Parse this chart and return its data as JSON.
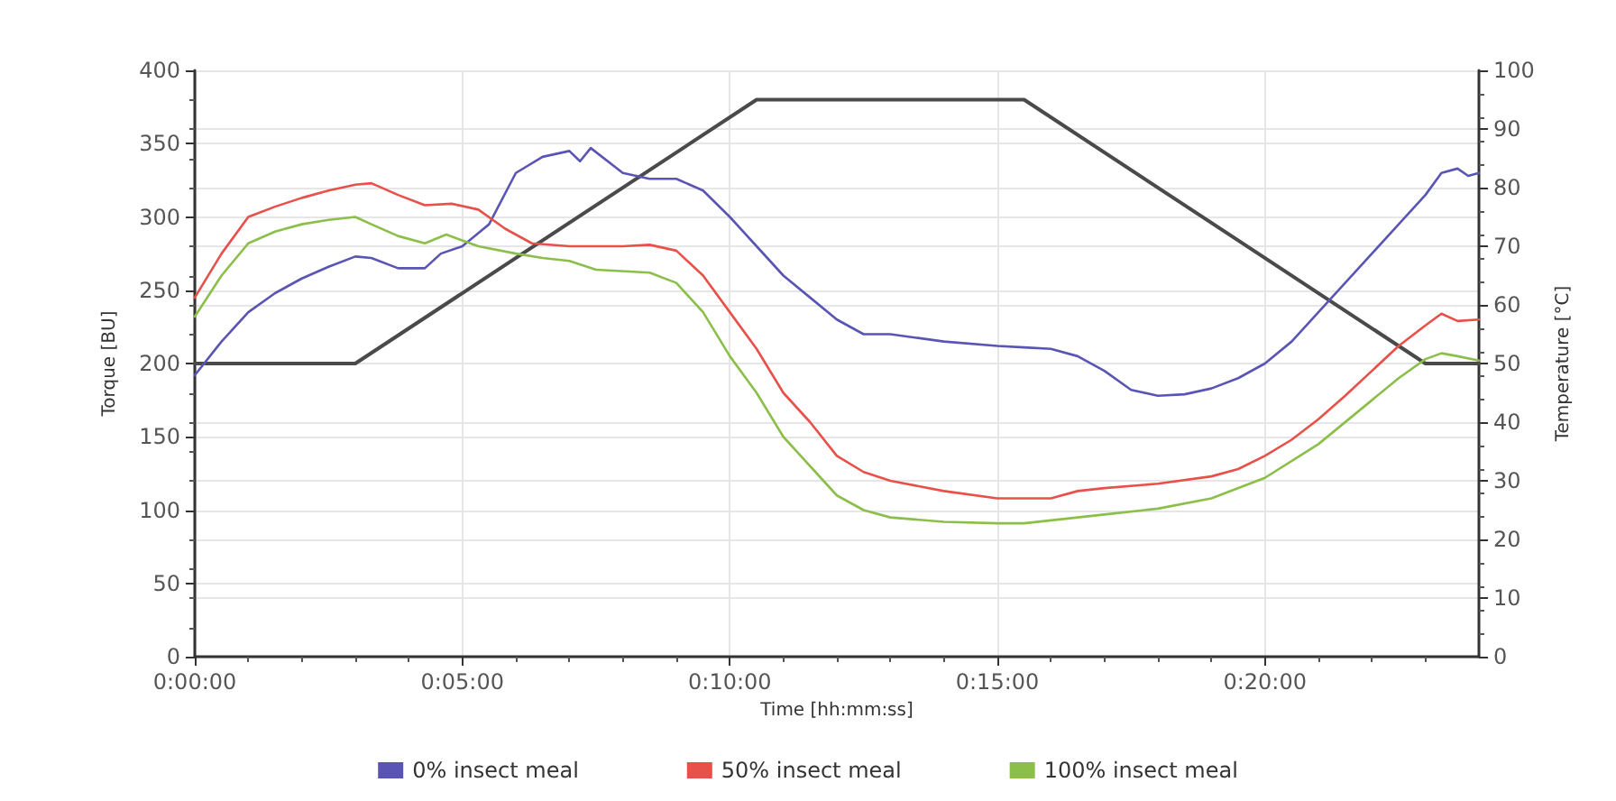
{
  "chart_data": {
    "type": "line",
    "xlabel": "Time [hh:mm:ss]",
    "ylabel": "Torque [BU]",
    "y2label": "Temperature [°C]",
    "xlim": [
      0,
      24
    ],
    "xticks": [
      {
        "value": 0,
        "label": "0:00:00"
      },
      {
        "value": 5,
        "label": "0:05:00"
      },
      {
        "value": 10,
        "label": "0:10:00"
      },
      {
        "value": 15,
        "label": "0:15:00"
      },
      {
        "value": 20,
        "label": "0:20:00"
      }
    ],
    "ylim": [
      0,
      400
    ],
    "yticks": [
      0,
      50,
      100,
      150,
      200,
      250,
      300,
      350,
      400
    ],
    "y2lim": [
      0,
      100
    ],
    "y2ticks": [
      0,
      10,
      20,
      30,
      40,
      50,
      60,
      70,
      80,
      90,
      100
    ],
    "grid": true,
    "legend": "bottom",
    "marker": "none",
    "line_style": "solid",
    "series": [
      {
        "name": "0% insect meal",
        "color": "#5a55b5",
        "x": [
          0,
          0.5,
          1,
          1.5,
          2,
          2.5,
          3,
          3.3,
          3.8,
          4.3,
          4.6,
          5,
          5.5,
          6,
          6.5,
          7,
          7.2,
          7.4,
          8,
          8.5,
          9,
          9.5,
          10,
          10.5,
          11,
          11.5,
          12,
          12.5,
          13,
          14,
          15,
          15.5,
          16,
          16.5,
          17,
          17.5,
          18,
          18.5,
          19,
          19.5,
          20,
          20.5,
          21,
          21.5,
          22,
          22.5,
          23,
          23.3,
          23.6,
          23.8,
          24
        ],
        "values": [
          192,
          215,
          235,
          248,
          258,
          266,
          273,
          272,
          265,
          265,
          275,
          280,
          295,
          330,
          341,
          345,
          338,
          347,
          330,
          326,
          326,
          318,
          300,
          280,
          260,
          245,
          230,
          220,
          220,
          215,
          212,
          211,
          210,
          205,
          195,
          182,
          178,
          179,
          183,
          190,
          200,
          215,
          235,
          255,
          275,
          295,
          315,
          330,
          333,
          328,
          330
        ]
      },
      {
        "name": "50% insect meal",
        "color": "#e8504a",
        "x": [
          0,
          0.5,
          1,
          1.5,
          2,
          2.5,
          3,
          3.3,
          3.8,
          4.3,
          4.8,
          5.3,
          5.8,
          6.3,
          7,
          8,
          8.5,
          9,
          9.5,
          10,
          10.5,
          11,
          11.5,
          12,
          12.5,
          13,
          14,
          15,
          15.5,
          16,
          16.5,
          17,
          18,
          19,
          19.5,
          20,
          20.5,
          21,
          21.5,
          22,
          22.5,
          23,
          23.3,
          23.6,
          24
        ],
        "values": [
          245,
          275,
          300,
          307,
          313,
          318,
          322,
          323,
          315,
          308,
          309,
          305,
          292,
          282,
          280,
          280,
          281,
          277,
          260,
          235,
          210,
          180,
          160,
          137,
          126,
          120,
          113,
          108,
          108,
          108,
          113,
          115,
          118,
          123,
          128,
          137,
          148,
          162,
          178,
          195,
          212,
          226,
          234,
          229,
          230
        ]
      },
      {
        "name": "100% insect meal",
        "color": "#8cbf4a",
        "x": [
          0,
          0.5,
          1,
          1.5,
          2,
          2.5,
          3,
          3.3,
          3.8,
          4.3,
          4.7,
          5.3,
          6,
          6.5,
          7,
          7.5,
          8.5,
          9,
          9.5,
          10,
          10.5,
          11,
          11.5,
          12,
          12.5,
          13,
          14,
          15,
          15.5,
          16,
          17,
          18,
          19,
          20,
          21,
          22,
          22.5,
          23,
          23.3,
          23.6,
          24
        ],
        "values": [
          232,
          260,
          282,
          290,
          295,
          298,
          300,
          295,
          287,
          282,
          288,
          280,
          275,
          272,
          270,
          264,
          262,
          255,
          235,
          205,
          180,
          150,
          130,
          110,
          100,
          95,
          92,
          91,
          91,
          93,
          97,
          101,
          108,
          122,
          145,
          175,
          190,
          203,
          207,
          205,
          202
        ]
      },
      {
        "color": "#4a4a4a",
        "axis": "y2",
        "x": [
          0,
          3,
          10.5,
          15.5,
          23,
          24
        ],
        "values": [
          50,
          50,
          95,
          95,
          50,
          50
        ]
      }
    ]
  }
}
